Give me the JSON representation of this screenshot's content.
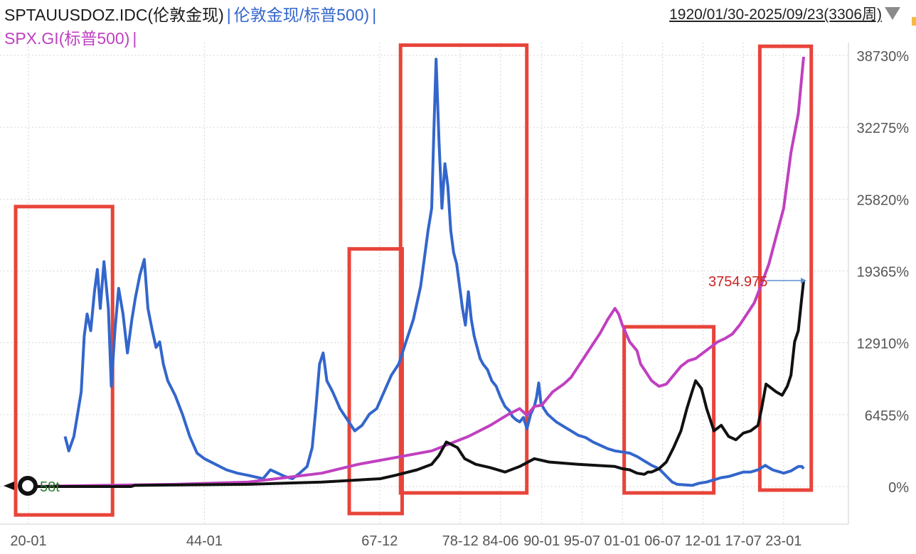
{
  "legend": {
    "series1": "SPTAUUSDOZ.IDC(伦敦金现)",
    "series2": "伦敦金现/标普500)",
    "series3": "SPX.GI(标普500)",
    "separator": "|"
  },
  "date_range": "1920/01/30-2025/09/23(3306周)",
  "colors": {
    "ratio": "#3366cc",
    "spx": "#c040c0",
    "gold": "#111111",
    "highlight": "#e8443a",
    "grid": "#d6d6d6",
    "end_label": "#cc2222",
    "start_label": "#2a7a2a"
  },
  "chart_data": {
    "type": "line",
    "y_unit": "%",
    "ylim": [
      -250,
      40000
    ],
    "y_ticks": [
      "38730%",
      "32275%",
      "25820%",
      "19365%",
      "12910%",
      "6455%",
      "0%"
    ],
    "y_tick_values": [
      38730,
      32275,
      25820,
      19365,
      12910,
      6455,
      0
    ],
    "x_ticks": [
      "20-01",
      "44-01",
      "67-12",
      "78-12",
      "84-06",
      "90-01",
      "95-07",
      "01-01",
      "06-07",
      "12-01",
      "17-07",
      "23-01"
    ],
    "x_tick_years": [
      1920.0,
      1944.0,
      1967.9,
      1978.9,
      1984.4,
      1990.0,
      1995.5,
      2001.0,
      2006.5,
      2012.0,
      2017.5,
      2023.0
    ],
    "end_label": "3754.975",
    "start_label": "58t",
    "series": [
      {
        "name": "伦敦金现/标普500",
        "color": "#3366cc",
        "points": [
          [
            1925.0,
            4500
          ],
          [
            1925.5,
            3200
          ],
          [
            1926.2,
            4500
          ],
          [
            1927.2,
            8500
          ],
          [
            1927.6,
            13500
          ],
          [
            1928.0,
            15500
          ],
          [
            1928.5,
            14000
          ],
          [
            1929.0,
            17500
          ],
          [
            1929.4,
            19500
          ],
          [
            1929.8,
            16000
          ],
          [
            1930.3,
            20200
          ],
          [
            1930.9,
            16000
          ],
          [
            1931.3,
            9000
          ],
          [
            1931.8,
            14000
          ],
          [
            1932.3,
            17800
          ],
          [
            1932.9,
            15500
          ],
          [
            1933.5,
            12000
          ],
          [
            1934.1,
            15000
          ],
          [
            1934.6,
            17000
          ],
          [
            1935.2,
            19000
          ],
          [
            1935.8,
            20400
          ],
          [
            1936.3,
            16000
          ],
          [
            1936.9,
            14000
          ],
          [
            1937.4,
            12500
          ],
          [
            1937.9,
            13000
          ],
          [
            1938.4,
            11000
          ],
          [
            1939.0,
            9500
          ],
          [
            1940.0,
            8200
          ],
          [
            1941.0,
            6500
          ],
          [
            1942.0,
            4500
          ],
          [
            1943.0,
            3000
          ],
          [
            1944.0,
            2500
          ],
          [
            1945.5,
            2000
          ],
          [
            1947.0,
            1500
          ],
          [
            1948.5,
            1200
          ],
          [
            1950.0,
            1000
          ],
          [
            1952.0,
            700
          ],
          [
            1953.0,
            1500
          ],
          [
            1954.0,
            1200
          ],
          [
            1955.0,
            900
          ],
          [
            1956.0,
            700
          ],
          [
            1957.0,
            1200
          ],
          [
            1958.0,
            1800
          ],
          [
            1958.7,
            3500
          ],
          [
            1959.2,
            7000
          ],
          [
            1959.7,
            11000
          ],
          [
            1960.2,
            12000
          ],
          [
            1960.7,
            9500
          ],
          [
            1961.5,
            8500
          ],
          [
            1962.5,
            7000
          ],
          [
            1963.5,
            6000
          ],
          [
            1964.5,
            5000
          ],
          [
            1965.5,
            5500
          ],
          [
            1966.5,
            6500
          ],
          [
            1967.5,
            7000
          ],
          [
            1968.5,
            8500
          ],
          [
            1969.5,
            10000
          ],
          [
            1970.5,
            11000
          ],
          [
            1971.5,
            13000
          ],
          [
            1972.5,
            15000
          ],
          [
            1973.5,
            18000
          ],
          [
            1974.5,
            23000
          ],
          [
            1975.0,
            25000
          ],
          [
            1975.3,
            32000
          ],
          [
            1975.6,
            38400
          ],
          [
            1976.0,
            31000
          ],
          [
            1976.4,
            25000
          ],
          [
            1976.8,
            29000
          ],
          [
            1977.2,
            27000
          ],
          [
            1977.6,
            23000
          ],
          [
            1978.0,
            21000
          ],
          [
            1978.4,
            20000
          ],
          [
            1978.8,
            18000
          ],
          [
            1979.2,
            16000
          ],
          [
            1979.6,
            14500
          ],
          [
            1980.0,
            17500
          ],
          [
            1980.4,
            15000
          ],
          [
            1980.8,
            13500
          ],
          [
            1981.2,
            12500
          ],
          [
            1981.6,
            11500
          ],
          [
            1982.0,
            11000
          ],
          [
            1982.6,
            10500
          ],
          [
            1983.2,
            9500
          ],
          [
            1983.8,
            9000
          ],
          [
            1984.4,
            8000
          ],
          [
            1985.0,
            7200
          ],
          [
            1985.6,
            6800
          ],
          [
            1986.0,
            6300
          ],
          [
            1986.5,
            6000
          ],
          [
            1987.0,
            5800
          ],
          [
            1987.5,
            6200
          ],
          [
            1988.0,
            5200
          ],
          [
            1988.5,
            6500
          ],
          [
            1989.0,
            7200
          ],
          [
            1989.3,
            8000
          ],
          [
            1989.6,
            9300
          ],
          [
            1989.9,
            7500
          ],
          [
            1990.3,
            7000
          ],
          [
            1990.8,
            6500
          ],
          [
            1991.3,
            6200
          ],
          [
            1992.0,
            5800
          ],
          [
            1993.0,
            5400
          ],
          [
            1994.0,
            5000
          ],
          [
            1995.0,
            4600
          ],
          [
            1996.0,
            4400
          ],
          [
            1997.0,
            4000
          ],
          [
            1998.0,
            3700
          ],
          [
            1999.0,
            3400
          ],
          [
            2000.0,
            3200
          ],
          [
            2001.0,
            3100
          ],
          [
            2002.0,
            3000
          ],
          [
            2003.0,
            2700
          ],
          [
            2004.0,
            2300
          ],
          [
            2005.0,
            1900
          ],
          [
            2006.0,
            1600
          ],
          [
            2006.6,
            1200
          ],
          [
            2007.2,
            800
          ],
          [
            2007.8,
            400
          ],
          [
            2008.5,
            200
          ],
          [
            2009.5,
            150
          ],
          [
            2010.5,
            100
          ],
          [
            2011.5,
            300
          ],
          [
            2012.5,
            400
          ],
          [
            2013.5,
            600
          ],
          [
            2014.5,
            800
          ],
          [
            2015.5,
            900
          ],
          [
            2016.5,
            1100
          ],
          [
            2017.5,
            1300
          ],
          [
            2018.5,
            1300
          ],
          [
            2019.5,
            1500
          ],
          [
            2020.0,
            1700
          ],
          [
            2020.5,
            1900
          ],
          [
            2021.0,
            1700
          ],
          [
            2021.5,
            1500
          ],
          [
            2022.0,
            1400
          ],
          [
            2022.5,
            1300
          ],
          [
            2023.0,
            1200
          ],
          [
            2023.5,
            1300
          ],
          [
            2024.0,
            1400
          ],
          [
            2024.5,
            1600
          ],
          [
            2025.0,
            1800
          ],
          [
            2025.5,
            1800
          ],
          [
            2025.73,
            1600
          ]
        ]
      },
      {
        "name": "SPX.GI(标普500)",
        "color": "#c040c0",
        "points": [
          [
            1920.0,
            0
          ],
          [
            1930.0,
            100
          ],
          [
            1940.0,
            200
          ],
          [
            1950.0,
            400
          ],
          [
            1955.0,
            800
          ],
          [
            1960.0,
            1200
          ],
          [
            1965.0,
            2000
          ],
          [
            1970.0,
            2600
          ],
          [
            1975.0,
            3200
          ],
          [
            1980.0,
            4500
          ],
          [
            1983.0,
            5500
          ],
          [
            1985.5,
            6500
          ],
          [
            1987.0,
            7000
          ],
          [
            1988.0,
            6400
          ],
          [
            1989.0,
            7200
          ],
          [
            1990.0,
            7300
          ],
          [
            1991.5,
            8500
          ],
          [
            1993.0,
            9200
          ],
          [
            1994.0,
            9800
          ],
          [
            1995.0,
            10800
          ],
          [
            1996.0,
            11800
          ],
          [
            1997.0,
            12800
          ],
          [
            1998.0,
            13800
          ],
          [
            1999.0,
            15000
          ],
          [
            2000.0,
            16000
          ],
          [
            2000.5,
            15500
          ],
          [
            2001.0,
            14500
          ],
          [
            2002.0,
            13000
          ],
          [
            2003.0,
            12200
          ],
          [
            2003.5,
            11000
          ],
          [
            2004.0,
            10500
          ],
          [
            2005.0,
            9500
          ],
          [
            2006.0,
            9000
          ],
          [
            2007.0,
            9200
          ],
          [
            2008.0,
            10000
          ],
          [
            2009.0,
            10800
          ],
          [
            2010.0,
            11300
          ],
          [
            2011.0,
            11500
          ],
          [
            2012.0,
            12000
          ],
          [
            2013.0,
            12500
          ],
          [
            2014.0,
            13000
          ],
          [
            2015.0,
            13300
          ],
          [
            2016.0,
            13700
          ],
          [
            2017.0,
            14500
          ],
          [
            2018.0,
            15500
          ],
          [
            2019.0,
            16500
          ],
          [
            2020.0,
            18200
          ],
          [
            2021.0,
            20000
          ],
          [
            2022.0,
            22500
          ],
          [
            2023.0,
            25000
          ],
          [
            2024.0,
            30000
          ],
          [
            2025.0,
            33500
          ],
          [
            2025.73,
            38600
          ]
        ]
      },
      {
        "name": "SPTAUUSDOZ.IDC(伦敦金现)",
        "color": "#111111",
        "points": [
          [
            1920.0,
            0
          ],
          [
            1934.0,
            0
          ],
          [
            1934.5,
            100
          ],
          [
            1950.0,
            200
          ],
          [
            1960.0,
            400
          ],
          [
            1968.0,
            700
          ],
          [
            1970.0,
            1000
          ],
          [
            1973.0,
            1500
          ],
          [
            1975.0,
            2000
          ],
          [
            1976.0,
            2800
          ],
          [
            1977.0,
            4000
          ],
          [
            1978.5,
            3500
          ],
          [
            1979.5,
            2500
          ],
          [
            1981.0,
            2000
          ],
          [
            1983.0,
            1700
          ],
          [
            1985.0,
            1300
          ],
          [
            1987.0,
            1800
          ],
          [
            1989.0,
            2500
          ],
          [
            1991.0,
            2200
          ],
          [
            1995.0,
            2000
          ],
          [
            2000.0,
            1800
          ],
          [
            2001.0,
            1600
          ],
          [
            2002.0,
            1500
          ],
          [
            2003.0,
            1200
          ],
          [
            2004.0,
            1100
          ],
          [
            2004.5,
            1300
          ],
          [
            2005.0,
            1300
          ],
          [
            2006.0,
            1600
          ],
          [
            2007.0,
            2200
          ],
          [
            2008.0,
            3500
          ],
          [
            2009.0,
            5000
          ],
          [
            2009.8,
            7000
          ],
          [
            2010.5,
            8500
          ],
          [
            2011.0,
            9500
          ],
          [
            2011.8,
            8800
          ],
          [
            2012.5,
            7000
          ],
          [
            2013.5,
            5000
          ],
          [
            2014.5,
            5500
          ],
          [
            2015.5,
            4500
          ],
          [
            2016.5,
            4200
          ],
          [
            2017.5,
            4800
          ],
          [
            2018.5,
            5000
          ],
          [
            2019.5,
            5500
          ],
          [
            2020.0,
            7000
          ],
          [
            2020.6,
            9200
          ],
          [
            2021.0,
            9000
          ],
          [
            2022.0,
            8500
          ],
          [
            2022.8,
            8200
          ],
          [
            2023.5,
            9000
          ],
          [
            2024.0,
            10000
          ],
          [
            2024.5,
            13000
          ],
          [
            2025.0,
            14000
          ],
          [
            2025.4,
            16500
          ],
          [
            2025.73,
            18500
          ]
        ]
      }
    ],
    "highlight_spans": [
      [
        1920.0,
        1930.5
      ],
      [
        1965.5,
        1970.0
      ],
      [
        1972.5,
        1987.0
      ],
      [
        2003.0,
        2012.5
      ],
      [
        2021.5,
        2025.8
      ]
    ]
  }
}
